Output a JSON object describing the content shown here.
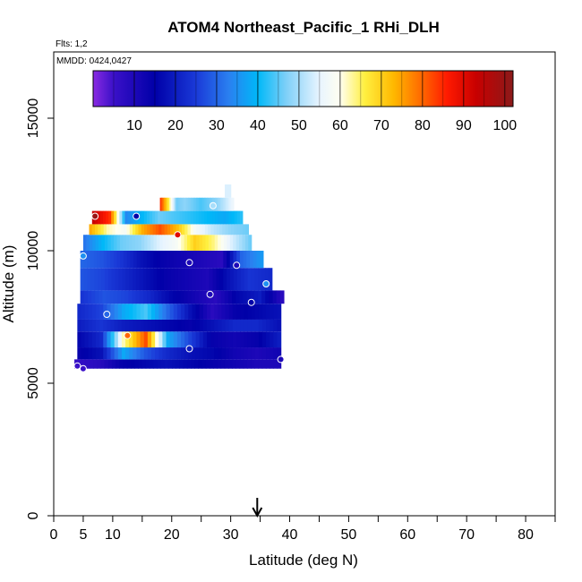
{
  "chart_data": {
    "type": "heatmap",
    "title": "ATOM4 Northeast_Pacific_1 RHi_DLH",
    "flights_note": "Flts: 1,2",
    "mmdd_note": "MMDD: 0424,0427",
    "xlabel": "Latitude (deg N)",
    "ylabel": "Altitude (m)",
    "xlim": [
      0,
      85
    ],
    "ylim": [
      0,
      17500
    ],
    "x_ticks": [
      0,
      5,
      10,
      20,
      30,
      40,
      50,
      60,
      70,
      80
    ],
    "x_minor_ticks": [
      15,
      25,
      35,
      45,
      55,
      65,
      75,
      85
    ],
    "y_ticks": [
      0,
      5000,
      10000,
      15000
    ],
    "marker_latitude": 34.5,
    "colorbar": {
      "min": 0,
      "max": 102,
      "ticks": [
        10,
        20,
        30,
        40,
        50,
        60,
        70,
        80,
        90,
        100
      ],
      "stops": [
        {
          "v": 0,
          "color": "#8a2be2"
        },
        {
          "v": 5,
          "color": "#3a10c8"
        },
        {
          "v": 15,
          "color": "#0000a8"
        },
        {
          "v": 25,
          "color": "#1a3ad8"
        },
        {
          "v": 33,
          "color": "#2a80f0"
        },
        {
          "v": 40,
          "color": "#00b8f8"
        },
        {
          "v": 47,
          "color": "#80d0f8"
        },
        {
          "v": 55,
          "color": "#e8f4ff"
        },
        {
          "v": 60,
          "color": "#fffff0"
        },
        {
          "v": 66,
          "color": "#ffef40"
        },
        {
          "v": 73,
          "color": "#ffb800"
        },
        {
          "v": 80,
          "color": "#ff6600"
        },
        {
          "v": 86,
          "color": "#ff1a00"
        },
        {
          "v": 93,
          "color": "#c80000"
        },
        {
          "v": 102,
          "color": "#8b1a1a"
        }
      ]
    },
    "layers": [
      {
        "alt": [
          5550,
          5900
        ],
        "lat": [
          3.5,
          38.5
        ],
        "v": [
          6,
          8,
          14,
          16,
          18,
          16,
          14,
          12,
          10,
          10
        ]
      },
      {
        "alt": [
          5900,
          6350
        ],
        "lat": [
          4.0,
          38.5
        ],
        "v": [
          14,
          18,
          38,
          28,
          22,
          18,
          16,
          12,
          10,
          12
        ]
      },
      {
        "alt": [
          6350,
          6950
        ],
        "lat": [
          4.0,
          38.5
        ],
        "v": [
          16,
          22,
          62,
          82,
          38,
          26,
          14,
          12,
          14,
          20
        ]
      },
      {
        "alt": [
          6950,
          7400
        ],
        "lat": [
          4.0,
          38.5
        ],
        "v": [
          20,
          24,
          20,
          18,
          16,
          14,
          18,
          22,
          22,
          18
        ]
      },
      {
        "alt": [
          7400,
          8000
        ],
        "lat": [
          4.0,
          38.5
        ],
        "v": [
          22,
          26,
          38,
          44,
          30,
          18,
          8,
          14,
          16,
          18
        ]
      },
      {
        "alt": [
          8000,
          8500
        ],
        "lat": [
          4.5,
          39.0
        ],
        "v": [
          24,
          28,
          26,
          22,
          16,
          12,
          8,
          16,
          20,
          8
        ]
      },
      {
        "alt": [
          8500,
          9350
        ],
        "lat": [
          4.5,
          37.0
        ],
        "v": [
          28,
          26,
          22,
          18,
          14,
          12,
          10,
          18,
          24,
          22
        ]
      },
      {
        "alt": [
          9350,
          10000
        ],
        "lat": [
          4.5,
          35.5
        ],
        "v": [
          30,
          28,
          24,
          18,
          14,
          12,
          10,
          8,
          30,
          36
        ]
      },
      {
        "alt": [
          10000,
          10600
        ],
        "lat": [
          5.0,
          33.5
        ],
        "v": [
          32,
          40,
          46,
          48,
          54,
          58,
          70,
          64,
          54,
          46
        ]
      },
      {
        "alt": [
          10600,
          11000
        ],
        "lat": [
          6.0,
          33.0
        ],
        "v": [
          74,
          62,
          58,
          74,
          82,
          72,
          58,
          52,
          48,
          46
        ]
      },
      {
        "alt": [
          11000,
          11500
        ],
        "lat": [
          6.5,
          32.0
        ],
        "v": [
          93,
          84,
          34,
          40,
          46,
          44,
          42,
          40,
          38,
          42
        ]
      },
      {
        "alt": [
          11500,
          12000
        ],
        "lat": [
          18.0,
          30.5
        ],
        "v": [
          84,
          66,
          46,
          48,
          46,
          44,
          46,
          48,
          52,
          56
        ]
      },
      {
        "alt": [
          12000,
          12500
        ],
        "lat": [
          29.0,
          30.0
        ],
        "v": [
          54
        ]
      }
    ],
    "circle_markers": [
      {
        "lat": 7.0,
        "alt": 11300,
        "v": 100
      },
      {
        "lat": 14.0,
        "alt": 11300,
        "v": 15
      },
      {
        "lat": 27.0,
        "alt": 11700,
        "v": 50
      },
      {
        "lat": 21.0,
        "alt": 10600,
        "v": 90
      },
      {
        "lat": 5.0,
        "alt": 9800,
        "v": 35
      },
      {
        "lat": 23.0,
        "alt": 9550,
        "v": 10
      },
      {
        "lat": 31.0,
        "alt": 9450,
        "v": 10
      },
      {
        "lat": 36.0,
        "alt": 8750,
        "v": 35
      },
      {
        "lat": 26.5,
        "alt": 8350,
        "v": 10
      },
      {
        "lat": 33.5,
        "alt": 8050,
        "v": 15
      },
      {
        "lat": 9.0,
        "alt": 7600,
        "v": 30
      },
      {
        "lat": 12.5,
        "alt": 6800,
        "v": 80
      },
      {
        "lat": 23.0,
        "alt": 6300,
        "v": 20
      },
      {
        "lat": 38.5,
        "alt": 5900,
        "v": 10
      },
      {
        "lat": 4.0,
        "alt": 5650,
        "v": 5
      },
      {
        "lat": 5.0,
        "alt": 5550,
        "v": 5
      }
    ]
  }
}
